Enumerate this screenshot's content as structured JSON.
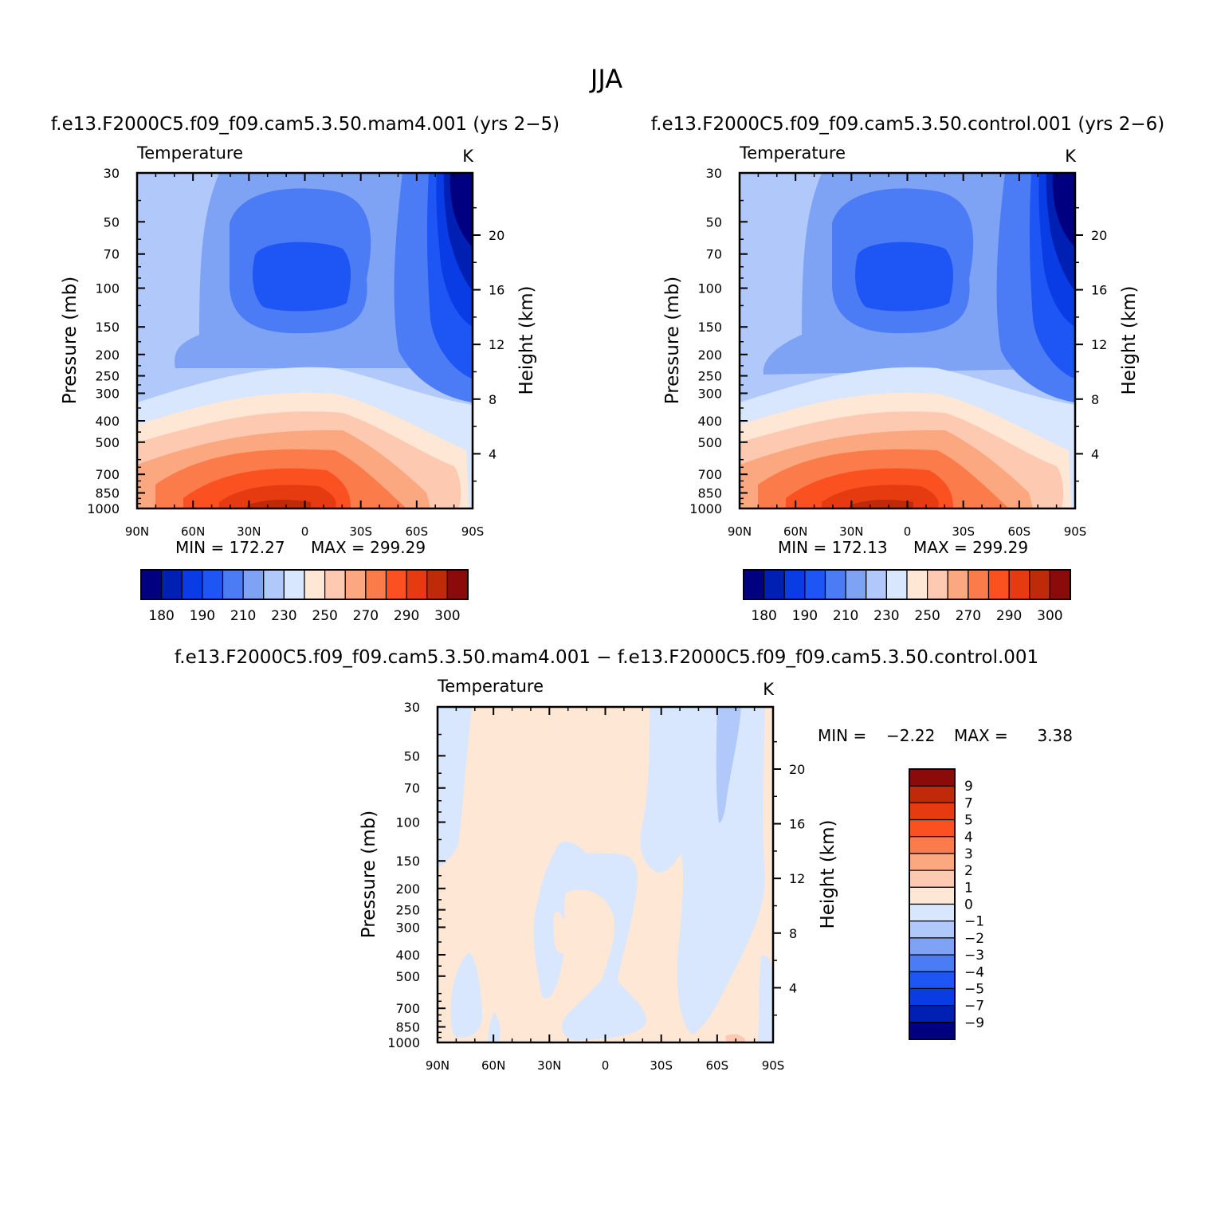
{
  "figure": {
    "title": "JJA"
  },
  "chart_data": [
    {
      "id": "panel1",
      "type": "contour",
      "title": "f.e13.F2000C5.f09_f09.cam5.3.50.mam4.001  (yrs  2−5)",
      "variable": "Temperature",
      "units": "K",
      "ylabel": "Pressure  (mb)",
      "y2label": "Height  (km)",
      "x_ticks": [
        "90N",
        "60N",
        "30N",
        "0",
        "30S",
        "60S",
        "90S"
      ],
      "y_ticks": [
        "30",
        "50",
        "70",
        "100",
        "150",
        "200",
        "250",
        "300",
        "400",
        "500",
        "700",
        "850",
        "1000"
      ],
      "y2_ticks": [
        "4",
        "8",
        "12",
        "16",
        "20"
      ],
      "min_text": "MIN  =  172.27",
      "max_text": "MAX  =  299.29",
      "colorbar_labels": [
        "180",
        "190",
        "210",
        "230",
        "250",
        "270",
        "290",
        "300"
      ]
    },
    {
      "id": "panel2",
      "type": "contour",
      "title": "f.e13.F2000C5.f09_f09.cam5.3.50.control.001  (yrs  2−6)",
      "variable": "Temperature",
      "units": "K",
      "ylabel": "Pressure  (mb)",
      "y2label": "Height  (km)",
      "x_ticks": [
        "90N",
        "60N",
        "30N",
        "0",
        "30S",
        "60S",
        "90S"
      ],
      "y_ticks": [
        "30",
        "50",
        "70",
        "100",
        "150",
        "200",
        "250",
        "300",
        "400",
        "500",
        "700",
        "850",
        "1000"
      ],
      "y2_ticks": [
        "4",
        "8",
        "12",
        "16",
        "20"
      ],
      "min_text": "MIN  =  172.13",
      "max_text": "MAX  =  299.29",
      "colorbar_labels": [
        "180",
        "190",
        "210",
        "230",
        "250",
        "270",
        "290",
        "300"
      ]
    },
    {
      "id": "panel3",
      "type": "contour",
      "title": "f.e13.F2000C5.f09_f09.cam5.3.50.mam4.001  −  f.e13.F2000C5.f09_f09.cam5.3.50.control.001",
      "variable": "Temperature",
      "units": "K",
      "ylabel": "Pressure  (mb)",
      "y2label": "Height  (km)",
      "x_ticks": [
        "90N",
        "60N",
        "30N",
        "0",
        "30S",
        "60S",
        "90S"
      ],
      "y_ticks": [
        "30",
        "50",
        "70",
        "100",
        "150",
        "200",
        "250",
        "300",
        "400",
        "500",
        "700",
        "850",
        "1000"
      ],
      "y2_ticks": [
        "4",
        "8",
        "12",
        "16",
        "20"
      ],
      "min_label": "MIN  =",
      "min_value": "−2.22",
      "max_label": "MAX  =",
      "max_value": "3.38",
      "colorbar_labels": [
        "9",
        "7",
        "5",
        "4",
        "3",
        "2",
        "1",
        "0",
        "−1",
        "−2",
        "−3",
        "−4",
        "−5",
        "−7",
        "−9"
      ]
    }
  ],
  "palette": {
    "cool": [
      "#000080",
      "#0020b4",
      "#0a3ce6",
      "#1e55f5",
      "#4b7cf5",
      "#7ea3f5",
      "#b0c9fa",
      "#d8e7fd"
    ],
    "warm": [
      "#ffe7d6",
      "#fdc9b0",
      "#fba880",
      "#fb7b4a",
      "#fb5020",
      "#e63a10",
      "#bf2a08",
      "#8b0a0a"
    ]
  }
}
